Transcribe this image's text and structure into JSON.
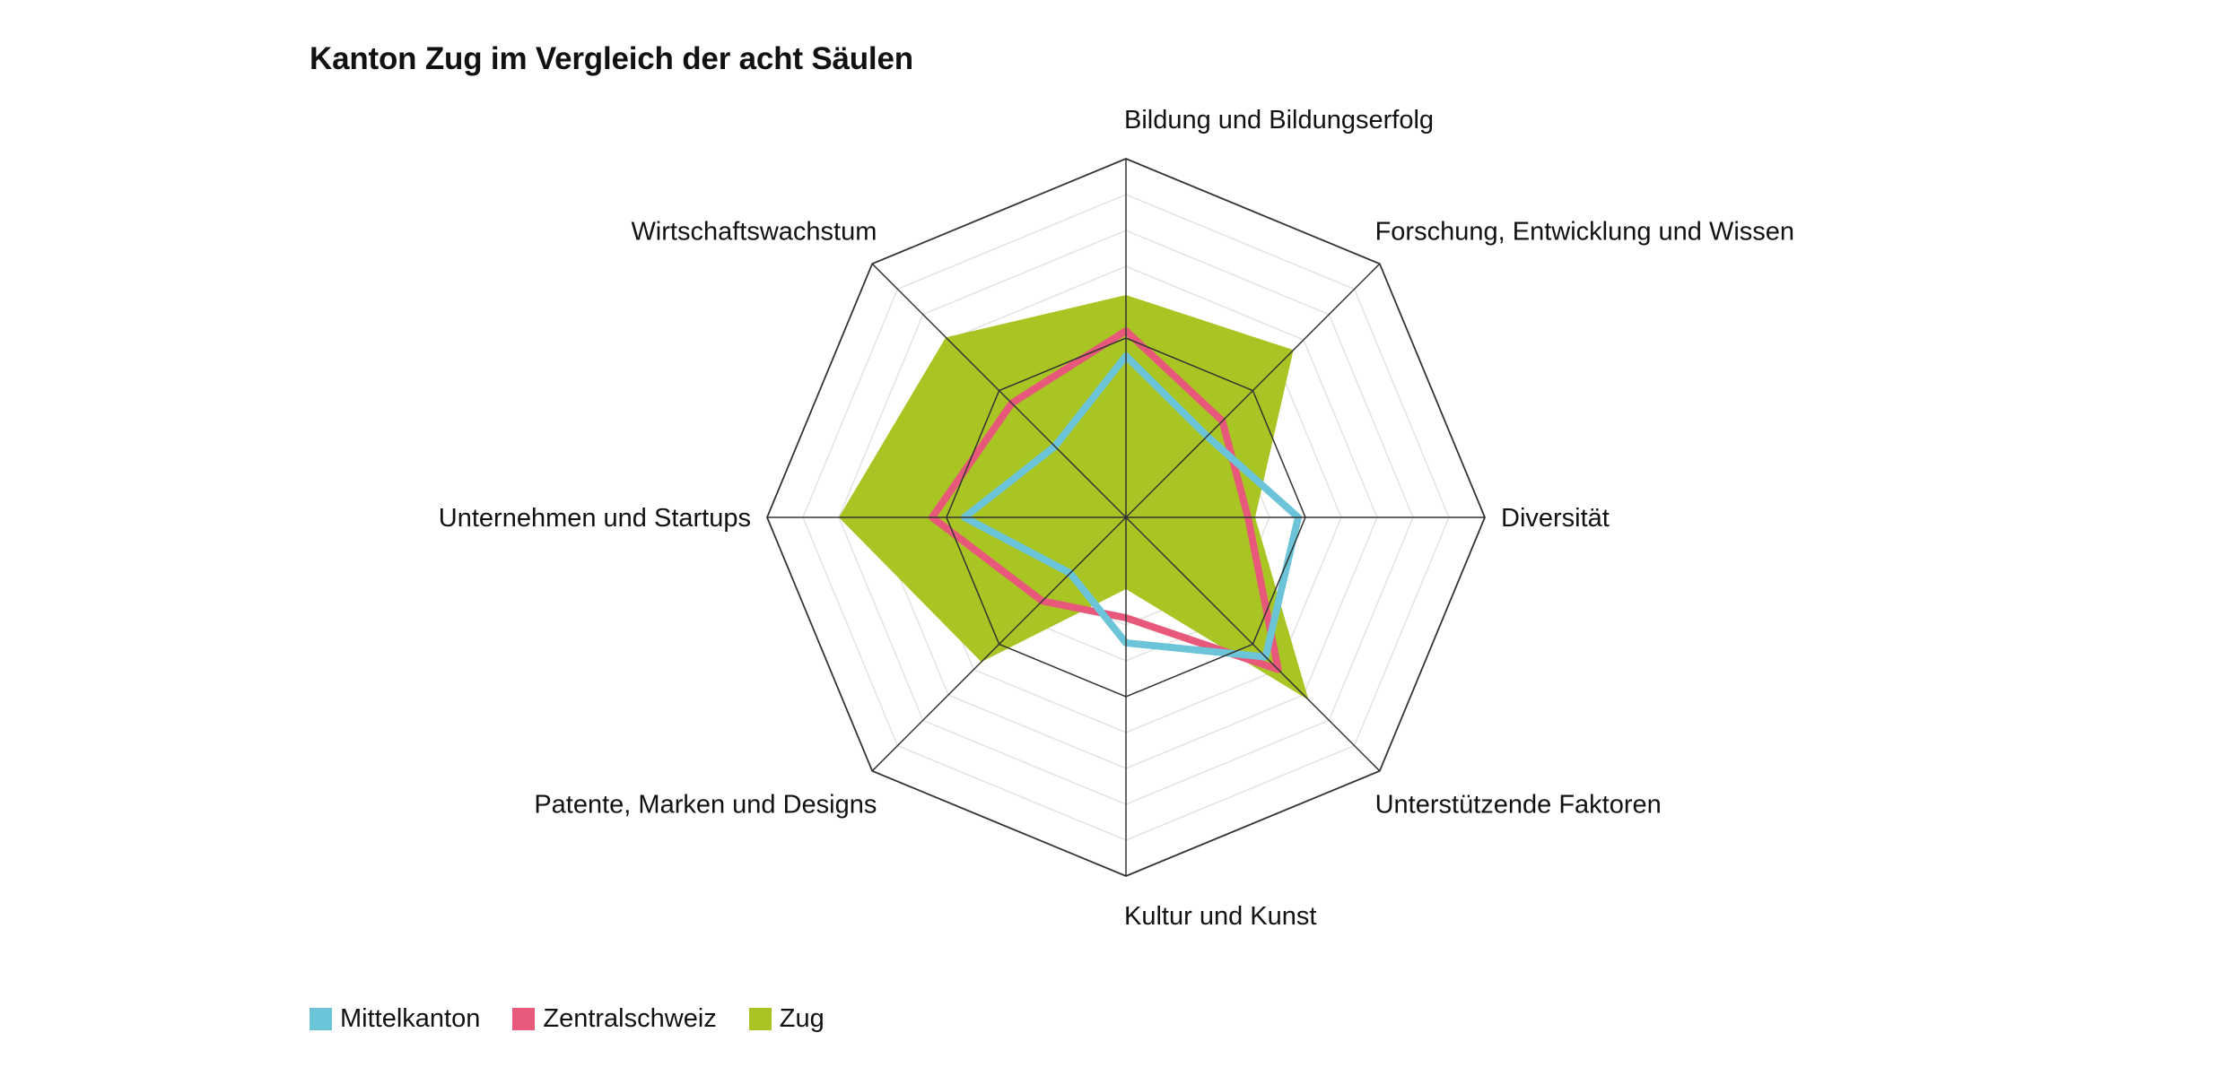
{
  "title": "Kanton Zug im Vergleich der acht Säulen",
  "colors": {
    "Mittelkanton": "#6cc4d8",
    "Zentralschweiz": "#e8587a",
    "Zug": "#a8c523"
  },
  "chart_data": {
    "type": "radar",
    "title": "Kanton Zug im Vergleich der acht Säulen",
    "axes": [
      "Bildung und Bildungserfolg",
      "Forschung, Entwicklung und Wissen",
      "Diversität",
      "Unterstützende Faktoren",
      "Kultur und Kunst",
      "Patente, Marken und Designs",
      "Unternehmen und Startups",
      "Wirtschaftswachstum"
    ],
    "range": [
      0,
      100
    ],
    "rings": 10,
    "grid": true,
    "legend_position": "bottom-left",
    "series": [
      {
        "name": "Zug",
        "style": "area",
        "values": [
          62,
          66,
          36,
          72,
          20,
          57,
          80,
          71
        ]
      },
      {
        "name": "Zentralschweiz",
        "style": "line",
        "values": [
          52,
          38,
          34,
          60,
          28,
          33,
          54,
          45
        ]
      },
      {
        "name": "Mittelkanton",
        "style": "line",
        "values": [
          45,
          32,
          48,
          55,
          35,
          22,
          45,
          28
        ]
      }
    ]
  },
  "legend": [
    {
      "label": "Mittelkanton",
      "series": "Mittelkanton"
    },
    {
      "label": "Zentralschweiz",
      "series": "Zentralschweiz"
    },
    {
      "label": "Zug",
      "series": "Zug"
    }
  ]
}
